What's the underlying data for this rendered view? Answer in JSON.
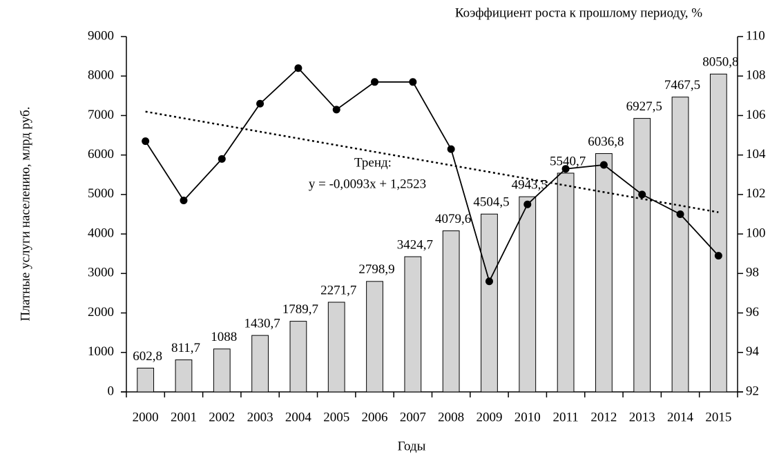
{
  "chart_data": {
    "type": "bar_line",
    "y_label": "Платные услуги населению, млрд руб.",
    "y2_label": "Коэффициент роста к прошлому периоду, %",
    "x_label": "Годы",
    "categories": [
      "2000",
      "2001",
      "2002",
      "2003",
      "2004",
      "2005",
      "2006",
      "2007",
      "2008",
      "2009",
      "2010",
      "2011",
      "2012",
      "2013",
      "2014",
      "2015"
    ],
    "series": [
      {
        "type": "bar",
        "color": "#d4d4d4",
        "values": [
          602.8,
          811.7,
          1088,
          1430.7,
          1789.7,
          2271.7,
          2798.9,
          3424.7,
          4079.6,
          4504.5,
          4943.5,
          5540.7,
          6036.8,
          6927.5,
          7467.5,
          8050.8
        ],
        "value_labels": [
          "602,8",
          "811,7",
          "1088",
          "1430,7",
          "1789,7",
          "2271,7",
          "2798,9",
          "3424,7",
          "4079,6",
          "4504,5",
          "4943,5",
          "5540,7",
          "6036,8",
          "6927,5",
          "7467,5",
          "8050,8"
        ]
      },
      {
        "type": "line",
        "axis": "y2",
        "color": "#000000",
        "values": [
          104.7,
          101.7,
          103.8,
          106.6,
          108.4,
          106.3,
          107.7,
          107.7,
          104.3,
          97.6,
          101.5,
          103.3,
          103.5,
          102.0,
          101.0,
          98.9
        ]
      }
    ],
    "trend": {
      "label": "Тренд:",
      "equation": "y = -0,0093x + 1,2523",
      "values": [
        106.2,
        101.1
      ]
    },
    "ylim": [
      0,
      9000
    ],
    "yticks": [
      0,
      1000,
      2000,
      3000,
      4000,
      5000,
      6000,
      7000,
      8000,
      9000
    ],
    "y2lim": [
      92,
      110
    ],
    "y2ticks": [
      92,
      94,
      96,
      98,
      100,
      102,
      104,
      106,
      108,
      110
    ],
    "grid": false
  }
}
